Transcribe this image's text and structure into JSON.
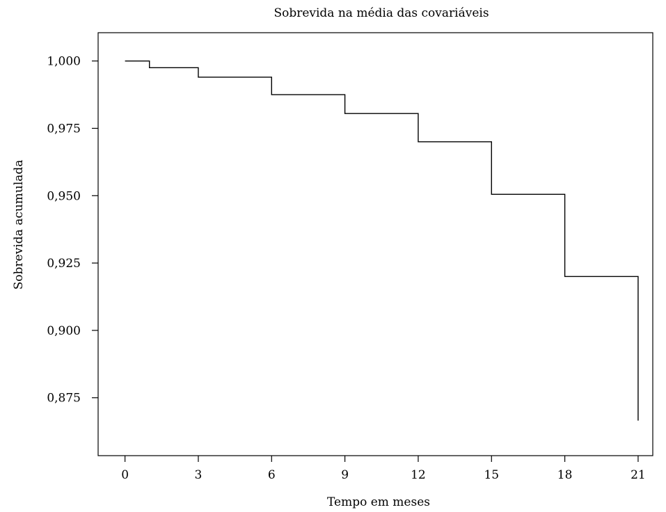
{
  "chart_data": {
    "type": "line",
    "step": true,
    "title": "Sobrevida na média das covariáveis",
    "xlabel": "Tempo em meses",
    "ylabel": "Sobrevida acumulada",
    "xlim": [
      -1.1,
      21.6
    ],
    "ylim": [
      0.8535,
      1.0105
    ],
    "xticks": [
      0,
      3,
      6,
      9,
      12,
      15,
      18,
      21
    ],
    "xtick_labels": [
      "0",
      "3",
      "6",
      "9",
      "12",
      "15",
      "18",
      "21"
    ],
    "yticks": [
      1.0,
      0.975,
      0.95,
      0.925,
      0.9,
      0.875
    ],
    "ytick_labels": [
      "1,000",
      "0,975",
      "0,950",
      "0,925",
      "0,900",
      "0,875"
    ],
    "grid": false,
    "series": [
      {
        "x": [
          0,
          1,
          3,
          6,
          9,
          12,
          15,
          18,
          21,
          21
        ],
        "y": [
          1.0,
          0.9975,
          0.994,
          0.9875,
          0.9805,
          0.97,
          0.9505,
          0.92,
          0.92,
          0.8665
        ]
      }
    ]
  }
}
